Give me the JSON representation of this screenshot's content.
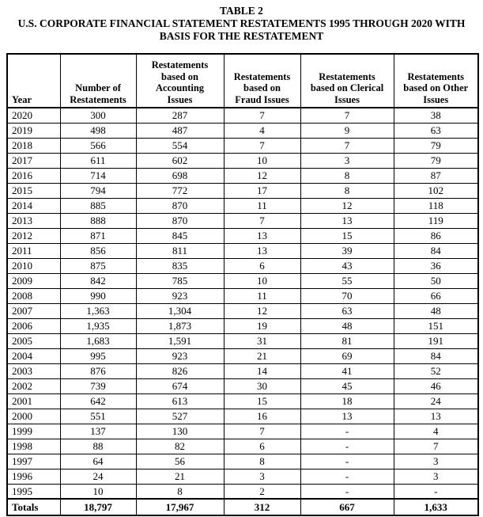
{
  "page": {
    "background": "#ffffff",
    "text_color": "#000000",
    "border_color": "#000000"
  },
  "title": {
    "line1": "TABLE 2",
    "line2": "U.S. CORPORATE FINANCIAL STATEMENT RESTATEMENTS 1995 THROUGH 2020 WITH",
    "line3": "BASIS FOR THE RESTATEMENT"
  },
  "table": {
    "columns": [
      {
        "key": "year",
        "label": "Year",
        "lines": [
          "Year"
        ]
      },
      {
        "key": "number",
        "label": "Number of Restatements",
        "lines": [
          "Number of",
          "Restatements"
        ]
      },
      {
        "key": "accounting",
        "label": "Restatements based on Accounting Issues",
        "lines": [
          "Restatements",
          "based on",
          "Accounting",
          "Issues"
        ]
      },
      {
        "key": "fraud",
        "label": "Restatements based on Fraud Issues",
        "lines": [
          "Restatements",
          "based on",
          "Fraud Issues"
        ]
      },
      {
        "key": "clerical",
        "label": "Restatements based on Clerical Issues",
        "lines": [
          "Restatements",
          "based on Clerical",
          "Issues"
        ]
      },
      {
        "key": "other",
        "label": "Restatements based on Other Issues",
        "lines": [
          "Restatements",
          "based on Other",
          "Issues"
        ]
      }
    ],
    "rows": [
      [
        "2020",
        "300",
        "287",
        "7",
        "7",
        "38"
      ],
      [
        "2019",
        "498",
        "487",
        "4",
        "9",
        "63"
      ],
      [
        "2018",
        "566",
        "554",
        "7",
        "7",
        "79"
      ],
      [
        "2017",
        "611",
        "602",
        "10",
        "3",
        "79"
      ],
      [
        "2016",
        "714",
        "698",
        "12",
        "8",
        "87"
      ],
      [
        "2015",
        "794",
        "772",
        "17",
        "8",
        "102"
      ],
      [
        "2014",
        "885",
        "870",
        "11",
        "12",
        "118"
      ],
      [
        "2013",
        "888",
        "870",
        "7",
        "13",
        "119"
      ],
      [
        "2012",
        "871",
        "845",
        "13",
        "15",
        "86"
      ],
      [
        "2011",
        "856",
        "811",
        "13",
        "39",
        "84"
      ],
      [
        "2010",
        "875",
        "835",
        "6",
        "43",
        "36"
      ],
      [
        "2009",
        "842",
        "785",
        "10",
        "55",
        "50"
      ],
      [
        "2008",
        "990",
        "923",
        "11",
        "70",
        "66"
      ],
      [
        "2007",
        "1,363",
        "1,304",
        "12",
        "63",
        "48"
      ],
      [
        "2006",
        "1,935",
        "1,873",
        "19",
        "48",
        "151"
      ],
      [
        "2005",
        "1,683",
        "1,591",
        "31",
        "81",
        "191"
      ],
      [
        "2004",
        "995",
        "923",
        "21",
        "69",
        "84"
      ],
      [
        "2003",
        "876",
        "826",
        "14",
        "41",
        "52"
      ],
      [
        "2002",
        "739",
        "674",
        "30",
        "45",
        "46"
      ],
      [
        "2001",
        "642",
        "613",
        "15",
        "18",
        "24"
      ],
      [
        "2000",
        "551",
        "527",
        "16",
        "13",
        "13"
      ],
      [
        "1999",
        "137",
        "130",
        "7",
        "-",
        "4"
      ],
      [
        "1998",
        "88",
        "82",
        "6",
        "-",
        "7"
      ],
      [
        "1997",
        "64",
        "56",
        "8",
        "-",
        "3"
      ],
      [
        "1996",
        "24",
        "21",
        "3",
        "-",
        "3"
      ],
      [
        "1995",
        "10",
        "8",
        "2",
        "-",
        "-"
      ]
    ],
    "totals": [
      "Totals",
      "18,797",
      "17,967",
      "312",
      "667",
      "1,633"
    ]
  }
}
